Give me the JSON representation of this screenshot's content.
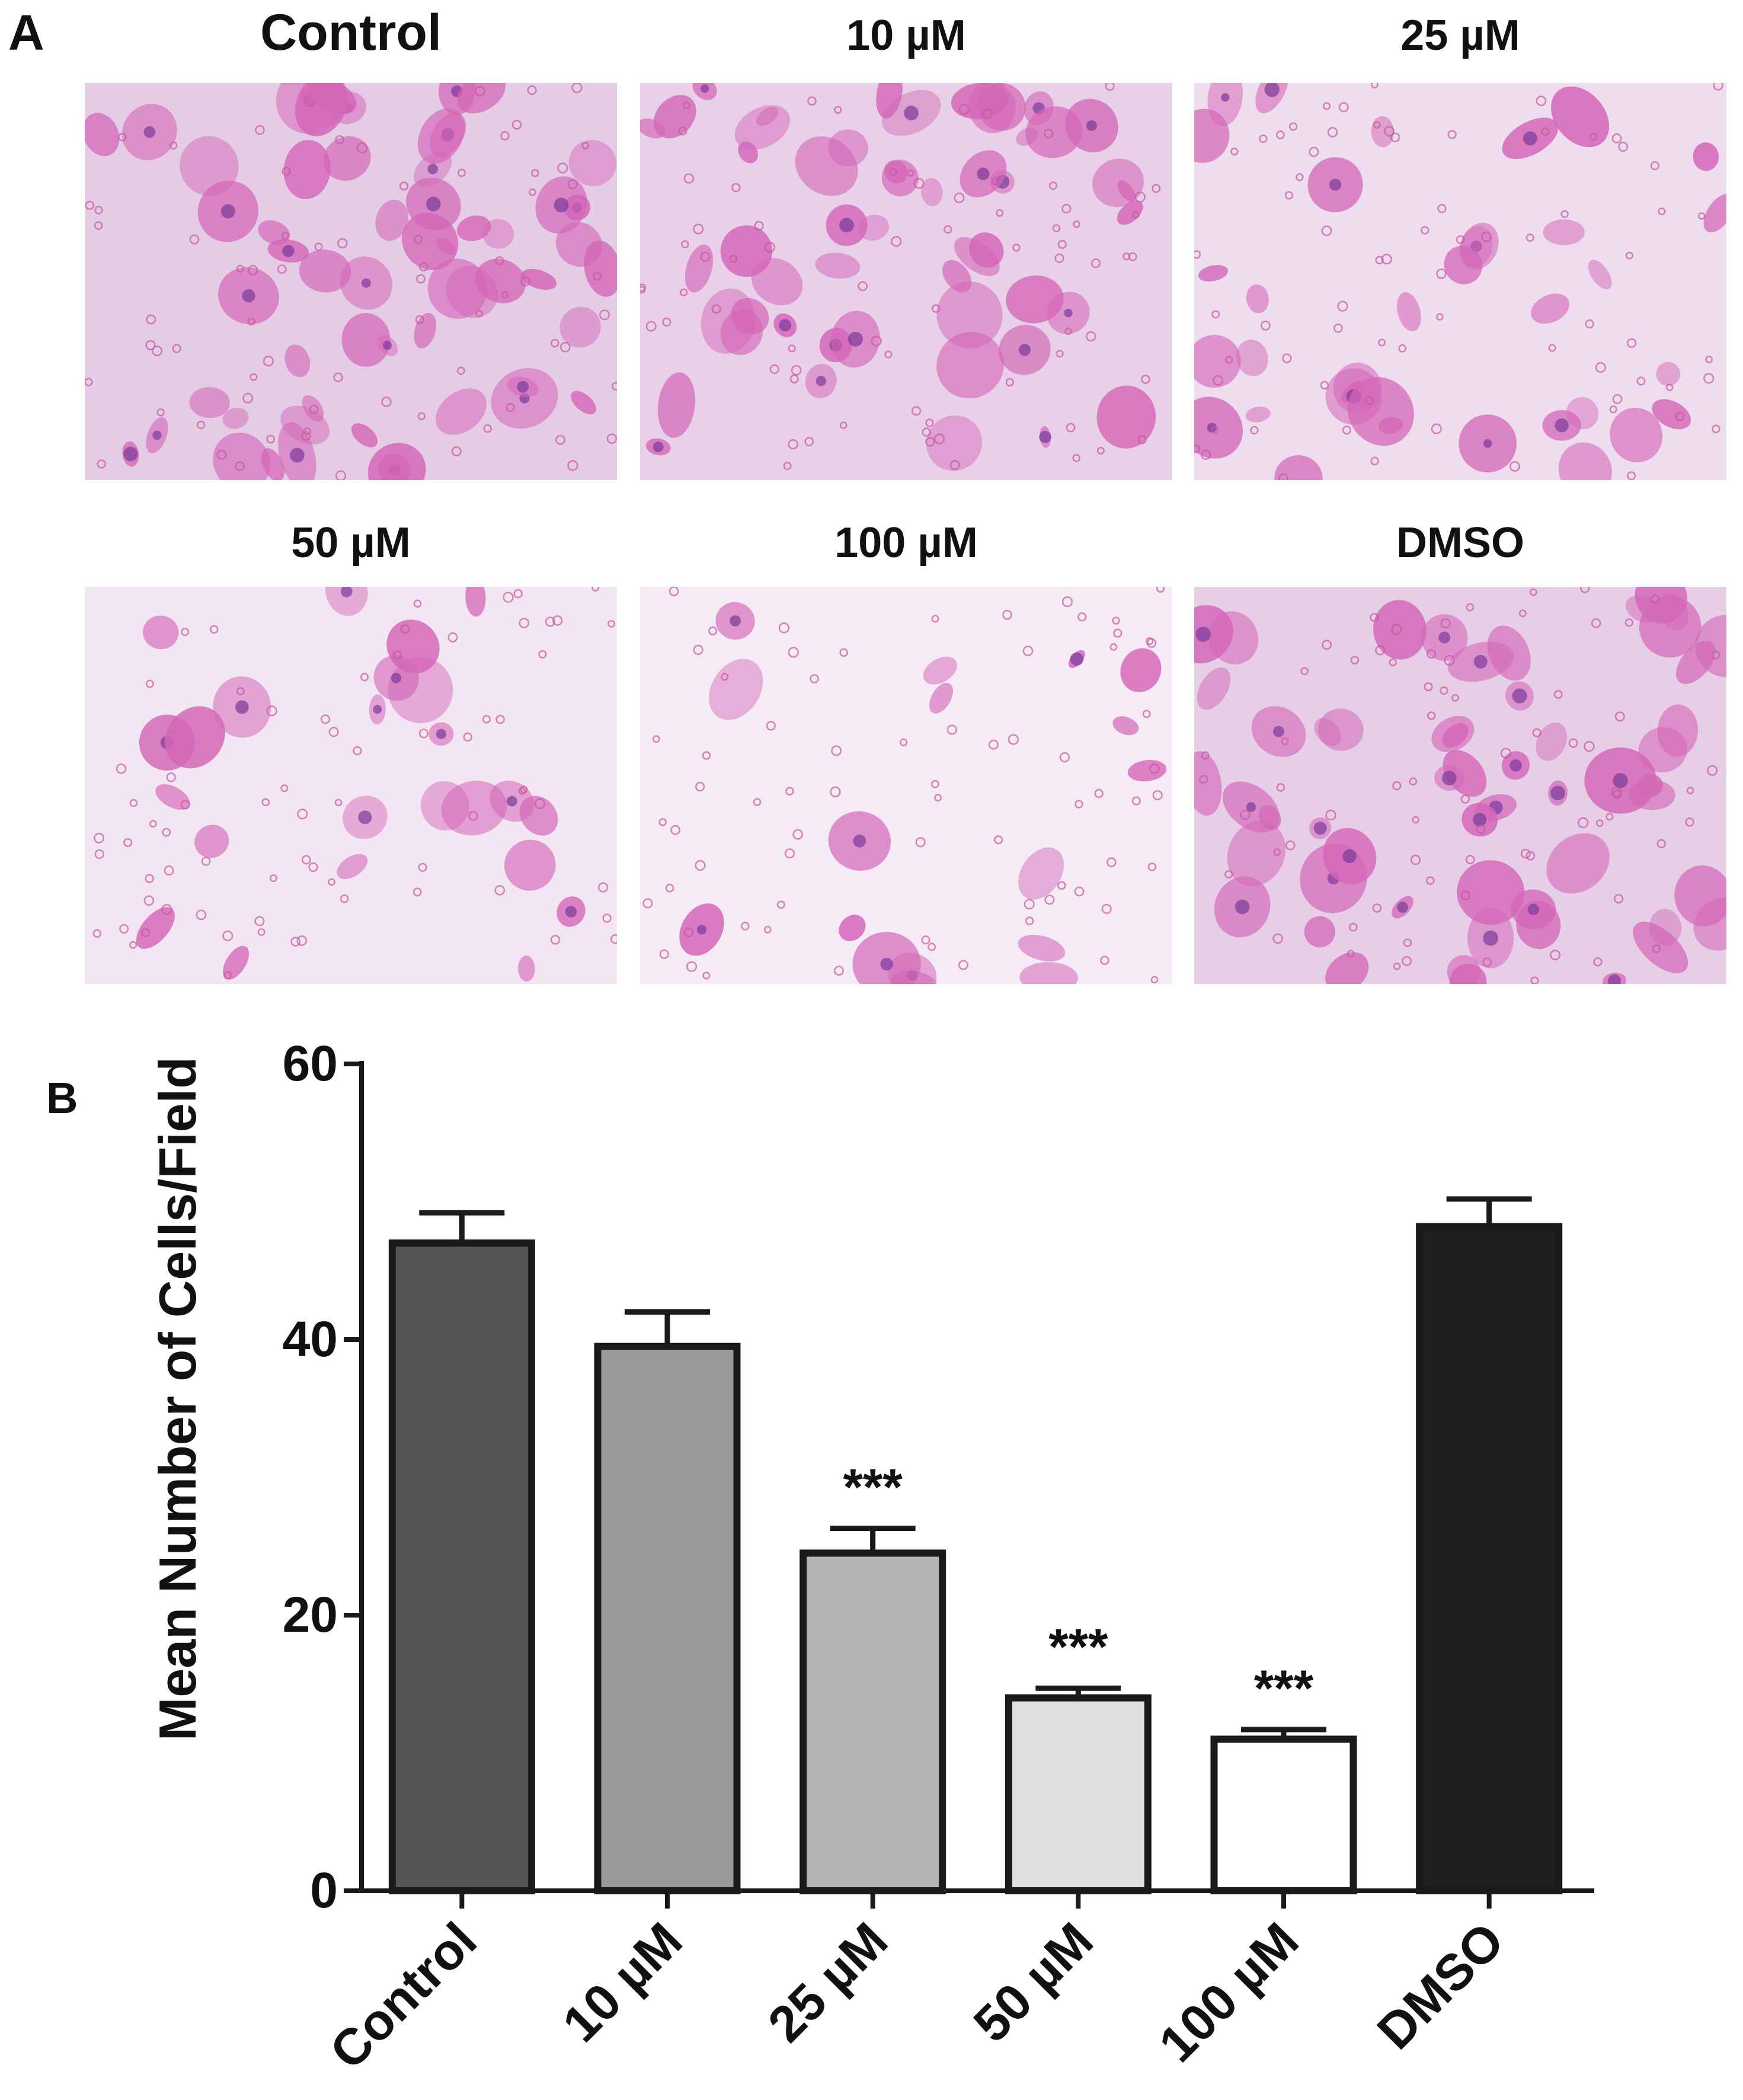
{
  "panel_a": {
    "label": "A",
    "micrographs": [
      {
        "title": "Control",
        "stain_density": 0.85
      },
      {
        "title": "10 µM",
        "stain_density": 0.75
      },
      {
        "title": "25 µM",
        "stain_density": 0.45
      },
      {
        "title": "50 µM",
        "stain_density": 0.25
      },
      {
        "title": "100 µM",
        "stain_density": 0.12
      },
      {
        "title": "DMSO",
        "stain_density": 0.8
      }
    ]
  },
  "panel_b": {
    "label": "B"
  },
  "chart_data": {
    "type": "bar",
    "title": "",
    "xlabel": "",
    "ylabel": "Mean Number of Cells/Field",
    "ylim": [
      0,
      60
    ],
    "yticks": [
      0,
      20,
      40,
      60
    ],
    "grid": false,
    "legend": "none",
    "categories": [
      "Control",
      "10 µM",
      "25 µM",
      "50 µM",
      "100 µM",
      "DMSO"
    ],
    "values": [
      47,
      39.5,
      24.5,
      14,
      11,
      48.2
    ],
    "errors": [
      2.2,
      2.5,
      1.8,
      0.7,
      0.7,
      2.0
    ],
    "annotations": [
      "",
      "",
      "***",
      "***",
      "***",
      ""
    ],
    "bar_colors": [
      "#555555",
      "#9b9b9b",
      "#b4b4b4",
      "#dedede",
      "#ffffff",
      "#1f1f1f"
    ]
  }
}
